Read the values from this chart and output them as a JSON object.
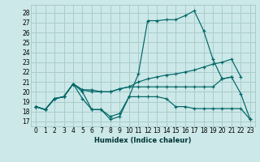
{
  "xlabel": "Humidex (Indice chaleur)",
  "bg_color": "#cce8e8",
  "grid_color": "#aacccc",
  "line_color": "#006666",
  "xlim": [
    -0.5,
    23.5
  ],
  "ylim": [
    16.5,
    28.8
  ],
  "xticks": [
    0,
    1,
    2,
    3,
    4,
    5,
    6,
    7,
    8,
    9,
    10,
    11,
    12,
    13,
    14,
    15,
    16,
    17,
    18,
    19,
    20,
    21,
    22,
    23
  ],
  "yticks": [
    17,
    18,
    19,
    20,
    21,
    22,
    23,
    24,
    25,
    26,
    27,
    28
  ],
  "lines": [
    {
      "x": [
        0,
        1,
        2,
        3,
        4,
        5,
        6,
        7,
        8,
        9,
        10,
        11,
        12,
        13,
        14,
        15,
        16,
        17,
        18,
        19,
        20,
        21,
        22,
        23
      ],
      "y": [
        18.5,
        18.2,
        19.3,
        19.5,
        20.8,
        20.0,
        18.2,
        18.2,
        17.2,
        17.5,
        19.5,
        21.8,
        27.2,
        27.2,
        27.3,
        27.3,
        27.7,
        28.2,
        26.2,
        23.3,
        21.3,
        21.5,
        19.8,
        17.2
      ]
    },
    {
      "x": [
        0,
        1,
        2,
        3,
        4,
        5,
        6,
        7,
        8,
        9,
        10,
        11,
        12,
        13,
        14,
        15,
        16,
        17,
        18,
        19,
        20,
        21,
        22,
        23
      ],
      "y": [
        18.5,
        18.2,
        19.3,
        19.5,
        20.8,
        19.3,
        18.2,
        18.2,
        17.5,
        17.8,
        19.5,
        19.5,
        19.5,
        19.5,
        19.3,
        18.5,
        18.5,
        18.3,
        18.3,
        18.3,
        18.3,
        18.3,
        18.3,
        17.2
      ]
    },
    {
      "x": [
        0,
        1,
        2,
        3,
        4,
        5,
        6,
        7,
        8,
        9,
        10,
        11,
        12,
        13,
        14,
        15,
        16,
        17,
        18,
        19,
        20,
        21,
        22
      ],
      "y": [
        18.5,
        18.2,
        19.3,
        19.5,
        20.8,
        20.2,
        20.0,
        20.0,
        20.0,
        20.3,
        20.5,
        21.0,
        21.3,
        21.5,
        21.7,
        21.8,
        22.0,
        22.2,
        22.5,
        22.8,
        23.0,
        23.3,
        21.5
      ]
    },
    {
      "x": [
        0,
        1,
        2,
        3,
        4,
        5,
        6,
        7,
        8,
        9,
        10,
        11,
        12,
        13,
        14,
        15,
        16,
        17,
        18,
        19,
        20,
        21
      ],
      "y": [
        18.5,
        18.2,
        19.3,
        19.5,
        20.8,
        20.2,
        20.2,
        20.0,
        20.0,
        20.3,
        20.5,
        20.5,
        20.5,
        20.5,
        20.5,
        20.5,
        20.5,
        20.5,
        20.5,
        20.5,
        21.3,
        21.5
      ]
    }
  ]
}
